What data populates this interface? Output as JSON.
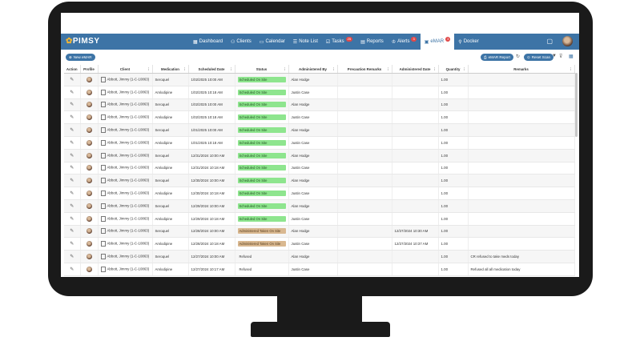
{
  "app": {
    "logo": "PIMSY"
  },
  "nav": [
    {
      "icon": "▦",
      "label": "Dashboard",
      "badge": ""
    },
    {
      "icon": "⚇",
      "label": "Clients",
      "badge": ""
    },
    {
      "icon": "▭",
      "label": "Calendar",
      "badge": ""
    },
    {
      "icon": "☰",
      "label": "Note List",
      "badge": ""
    },
    {
      "icon": "☑",
      "label": "Tasks",
      "badge": "25"
    },
    {
      "icon": "▤",
      "label": "Reports",
      "badge": ""
    },
    {
      "icon": "♔",
      "label": "Alerts",
      "badge": "3"
    },
    {
      "icon": "▣",
      "label": "eMAR",
      "badge": "3"
    },
    {
      "icon": "⚲",
      "label": "Docker",
      "badge": ""
    }
  ],
  "toolbar": {
    "new_label": "New eMAR",
    "report_label": "eMAR Report",
    "reset_label": "Reset Scan"
  },
  "columns": [
    "Action",
    "Profile",
    "Client",
    "Medication",
    "Scheduled Date",
    "Status",
    "Administered By",
    "Precaution Remarks",
    "Administered Date",
    "Quantity",
    "Remarks"
  ],
  "rows": [
    {
      "client": "Abbott, Jimmy (1-C-10863)",
      "med": "Seroquel",
      "sched": "1/02/2025 10:00 AM",
      "status": "Scheduled On Site",
      "stype": "sched",
      "by": "Alan Hodge",
      "adate": "",
      "qty": "1.00",
      "remarks": ""
    },
    {
      "client": "Abbott, Jimmy (1-C-10863)",
      "med": "Amlodipine",
      "sched": "1/02/2025 10:18 AM",
      "status": "Scheduled On Site",
      "stype": "sched",
      "by": "Justin Case",
      "adate": "",
      "qty": "1.00",
      "remarks": ""
    },
    {
      "client": "Abbott, Jimmy (1-C-10863)",
      "med": "Seroquel",
      "sched": "1/02/2025 10:00 AM",
      "status": "Scheduled On Site",
      "stype": "sched",
      "by": "Alan Hodge",
      "adate": "",
      "qty": "1.00",
      "remarks": ""
    },
    {
      "client": "Abbott, Jimmy (1-C-10863)",
      "med": "Amlodipine",
      "sched": "1/02/2025 10:18 AM",
      "status": "Scheduled On Site",
      "stype": "sched",
      "by": "Justin Case",
      "adate": "",
      "qty": "1.00",
      "remarks": ""
    },
    {
      "client": "Abbott, Jimmy (1-C-10863)",
      "med": "Seroquel",
      "sched": "1/01/2025 10:00 AM",
      "status": "Scheduled On Site",
      "stype": "sched",
      "by": "Alan Hodge",
      "adate": "",
      "qty": "1.00",
      "remarks": ""
    },
    {
      "client": "Abbott, Jimmy (1-C-10863)",
      "med": "Amlodipine",
      "sched": "1/01/2025 10:18 AM",
      "status": "Scheduled On Site",
      "stype": "sched",
      "by": "Justin Case",
      "adate": "",
      "qty": "1.00",
      "remarks": ""
    },
    {
      "client": "Abbott, Jimmy (1-C-10863)",
      "med": "Seroquel",
      "sched": "12/31/2024 10:00 AM",
      "status": "Scheduled On Site",
      "stype": "sched",
      "by": "Alan Hodge",
      "adate": "",
      "qty": "1.00",
      "remarks": ""
    },
    {
      "client": "Abbott, Jimmy (1-C-10863)",
      "med": "Amlodipine",
      "sched": "12/31/2024 10:18 AM",
      "status": "Scheduled On Site",
      "stype": "sched",
      "by": "Justin Case",
      "adate": "",
      "qty": "1.00",
      "remarks": ""
    },
    {
      "client": "Abbott, Jimmy (1-C-10863)",
      "med": "Seroquel",
      "sched": "12/30/2024 10:00 AM",
      "status": "Scheduled On Site",
      "stype": "sched",
      "by": "Alan Hodge",
      "adate": "",
      "qty": "1.00",
      "remarks": ""
    },
    {
      "client": "Abbott, Jimmy (1-C-10863)",
      "med": "Amlodipine",
      "sched": "12/30/2024 10:18 AM",
      "status": "Scheduled On Site",
      "stype": "sched",
      "by": "Justin Case",
      "adate": "",
      "qty": "1.00",
      "remarks": ""
    },
    {
      "client": "Abbott, Jimmy (1-C-10863)",
      "med": "Seroquel",
      "sched": "12/29/2024 10:00 AM",
      "status": "Scheduled On Site",
      "stype": "sched",
      "by": "Alan Hodge",
      "adate": "",
      "qty": "1.00",
      "remarks": ""
    },
    {
      "client": "Abbott, Jimmy (1-C-10863)",
      "med": "Amlodipine",
      "sched": "12/29/2024 10:18 AM",
      "status": "Scheduled On Site",
      "stype": "sched",
      "by": "Justin Case",
      "adate": "",
      "qty": "1.00",
      "remarks": ""
    },
    {
      "client": "Abbott, Jimmy (1-C-10863)",
      "med": "Seroquel",
      "sched": "12/28/2024 10:00 AM",
      "status": "Administered Taken On Site",
      "stype": "admin",
      "by": "Alan Hodge",
      "adate": "12/27/2024 10:30 AM",
      "qty": "1.00",
      "remarks": ""
    },
    {
      "client": "Abbott, Jimmy (1-C-10863)",
      "med": "Amlodipine",
      "sched": "12/28/2024 10:18 AM",
      "status": "Administered Taken On Site",
      "stype": "admin",
      "by": "Justin Case",
      "adate": "12/27/2024 10:37 AM",
      "qty": "1.00",
      "remarks": ""
    },
    {
      "client": "Abbott, Jimmy (1-C-10863)",
      "med": "Seroquel",
      "sched": "12/27/2024 10:00 AM",
      "status": "Refused",
      "stype": "ref",
      "by": "Alan Hodge",
      "adate": "",
      "qty": "1.00",
      "remarks": "CR refused to take meds today"
    },
    {
      "client": "Abbott, Jimmy (1-C-10863)",
      "med": "Amlodipine",
      "sched": "12/27/2024 10:17 AM",
      "status": "Refused",
      "stype": "ref",
      "by": "Justin Case",
      "adate": "",
      "qty": "1.00",
      "remarks": "Refused all all medication today"
    }
  ]
}
